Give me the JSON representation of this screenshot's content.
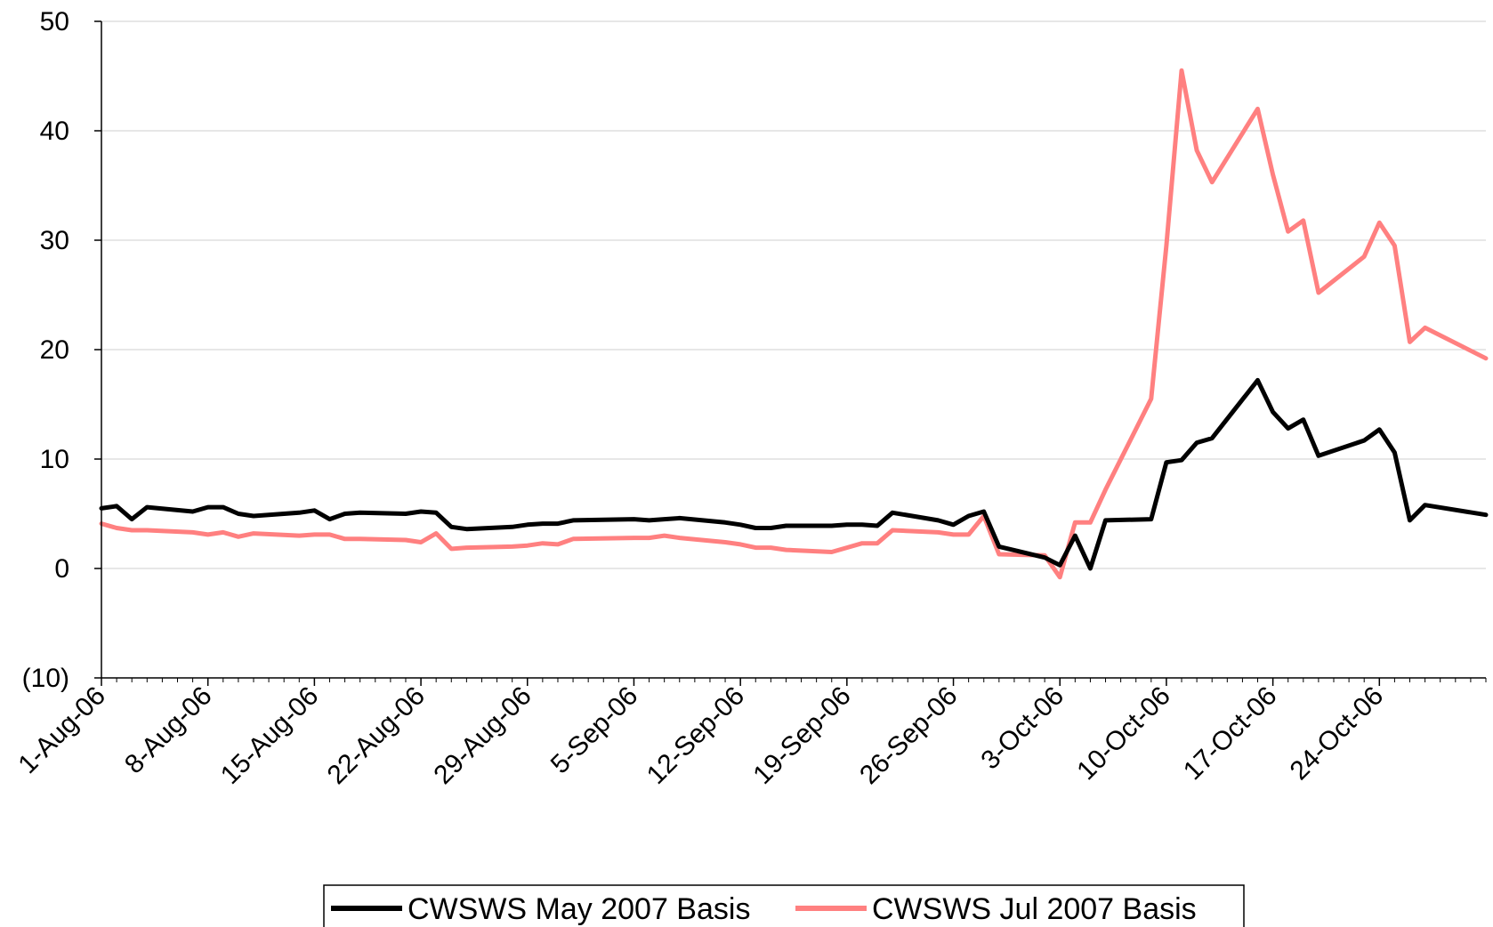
{
  "chart_data": {
    "type": "line",
    "title": "",
    "xlabel": "",
    "ylabel": "",
    "ylim": [
      -10,
      50
    ],
    "y_ticks": [
      {
        "value": 50,
        "label": "50"
      },
      {
        "value": 40,
        "label": "40"
      },
      {
        "value": 30,
        "label": "30"
      },
      {
        "value": 20,
        "label": "20"
      },
      {
        "value": 10,
        "label": "10"
      },
      {
        "value": 0,
        "label": "0"
      },
      {
        "value": -10,
        "label": "(10)"
      }
    ],
    "negative_label_color": "#ff0000",
    "x_start": "2006-08-01",
    "x_end": "2006-10-31",
    "x_ticks": [
      {
        "date": "2006-08-01",
        "label": "1-Aug-06"
      },
      {
        "date": "2006-08-08",
        "label": "8-Aug-06"
      },
      {
        "date": "2006-08-15",
        "label": "15-Aug-06"
      },
      {
        "date": "2006-08-22",
        "label": "22-Aug-06"
      },
      {
        "date": "2006-08-29",
        "label": "29-Aug-06"
      },
      {
        "date": "2006-09-05",
        "label": "5-Sep-06"
      },
      {
        "date": "2006-09-12",
        "label": "12-Sep-06"
      },
      {
        "date": "2006-09-19",
        "label": "19-Sep-06"
      },
      {
        "date": "2006-09-26",
        "label": "26-Sep-06"
      },
      {
        "date": "2006-10-03",
        "label": "3-Oct-06"
      },
      {
        "date": "2006-10-10",
        "label": "10-Oct-06"
      },
      {
        "date": "2006-10-17",
        "label": "17-Oct-06"
      },
      {
        "date": "2006-10-24",
        "label": "24-Oct-06"
      }
    ],
    "grid": true,
    "legend_position": "bottom",
    "series": [
      {
        "name": "CWSWS May 2007 Basis",
        "color": "#000000",
        "points": [
          [
            "2006-08-01",
            5.5
          ],
          [
            "2006-08-02",
            5.7
          ],
          [
            "2006-08-03",
            4.5
          ],
          [
            "2006-08-04",
            5.6
          ],
          [
            "2006-08-07",
            5.2
          ],
          [
            "2006-08-08",
            5.6
          ],
          [
            "2006-08-09",
            5.6
          ],
          [
            "2006-08-10",
            5.0
          ],
          [
            "2006-08-11",
            4.8
          ],
          [
            "2006-08-14",
            5.1
          ],
          [
            "2006-08-15",
            5.3
          ],
          [
            "2006-08-16",
            4.5
          ],
          [
            "2006-08-17",
            5.0
          ],
          [
            "2006-08-18",
            5.1
          ],
          [
            "2006-08-21",
            5.0
          ],
          [
            "2006-08-22",
            5.2
          ],
          [
            "2006-08-23",
            5.1
          ],
          [
            "2006-08-24",
            3.8
          ],
          [
            "2006-08-25",
            3.6
          ],
          [
            "2006-08-28",
            3.8
          ],
          [
            "2006-08-29",
            4.0
          ],
          [
            "2006-08-30",
            4.1
          ],
          [
            "2006-08-31",
            4.1
          ],
          [
            "2006-09-01",
            4.4
          ],
          [
            "2006-09-05",
            4.5
          ],
          [
            "2006-09-06",
            4.4
          ],
          [
            "2006-09-07",
            4.5
          ],
          [
            "2006-09-08",
            4.6
          ],
          [
            "2006-09-11",
            4.2
          ],
          [
            "2006-09-12",
            4.0
          ],
          [
            "2006-09-13",
            3.7
          ],
          [
            "2006-09-14",
            3.7
          ],
          [
            "2006-09-15",
            3.9
          ],
          [
            "2006-09-18",
            3.9
          ],
          [
            "2006-09-19",
            4.0
          ],
          [
            "2006-09-20",
            4.0
          ],
          [
            "2006-09-21",
            3.9
          ],
          [
            "2006-09-22",
            5.1
          ],
          [
            "2006-09-25",
            4.4
          ],
          [
            "2006-09-26",
            4.0
          ],
          [
            "2006-09-27",
            4.8
          ],
          [
            "2006-09-28",
            5.2
          ],
          [
            "2006-09-29",
            2.0
          ],
          [
            "2006-10-02",
            1.0
          ],
          [
            "2006-10-03",
            0.3
          ],
          [
            "2006-10-04",
            3.0
          ],
          [
            "2006-10-05",
            0.0
          ],
          [
            "2006-10-06",
            4.4
          ],
          [
            "2006-10-09",
            4.5
          ],
          [
            "2006-10-10",
            9.7
          ],
          [
            "2006-10-11",
            9.9
          ],
          [
            "2006-10-12",
            11.5
          ],
          [
            "2006-10-13",
            11.9
          ],
          [
            "2006-10-16",
            17.2
          ],
          [
            "2006-10-17",
            14.3
          ],
          [
            "2006-10-18",
            12.8
          ],
          [
            "2006-10-19",
            13.6
          ],
          [
            "2006-10-20",
            10.3
          ],
          [
            "2006-10-23",
            11.7
          ],
          [
            "2006-10-24",
            12.7
          ],
          [
            "2006-10-25",
            10.6
          ],
          [
            "2006-10-26",
            4.4
          ],
          [
            "2006-10-27",
            5.8
          ],
          [
            "2006-10-31",
            4.9
          ]
        ]
      },
      {
        "name": "CWSWS Jul 2007 Basis",
        "color": "#ff8080",
        "points": [
          [
            "2006-08-01",
            4.1
          ],
          [
            "2006-08-02",
            3.7
          ],
          [
            "2006-08-03",
            3.5
          ],
          [
            "2006-08-04",
            3.5
          ],
          [
            "2006-08-07",
            3.3
          ],
          [
            "2006-08-08",
            3.1
          ],
          [
            "2006-08-09",
            3.3
          ],
          [
            "2006-08-10",
            2.9
          ],
          [
            "2006-08-11",
            3.2
          ],
          [
            "2006-08-14",
            3.0
          ],
          [
            "2006-08-15",
            3.1
          ],
          [
            "2006-08-16",
            3.1
          ],
          [
            "2006-08-17",
            2.7
          ],
          [
            "2006-08-18",
            2.7
          ],
          [
            "2006-08-21",
            2.6
          ],
          [
            "2006-08-22",
            2.4
          ],
          [
            "2006-08-23",
            3.2
          ],
          [
            "2006-08-24",
            1.8
          ],
          [
            "2006-08-25",
            1.9
          ],
          [
            "2006-08-28",
            2.0
          ],
          [
            "2006-08-29",
            2.1
          ],
          [
            "2006-08-30",
            2.3
          ],
          [
            "2006-08-31",
            2.2
          ],
          [
            "2006-09-01",
            2.7
          ],
          [
            "2006-09-05",
            2.8
          ],
          [
            "2006-09-06",
            2.8
          ],
          [
            "2006-09-07",
            3.0
          ],
          [
            "2006-09-08",
            2.8
          ],
          [
            "2006-09-11",
            2.4
          ],
          [
            "2006-09-12",
            2.2
          ],
          [
            "2006-09-13",
            1.9
          ],
          [
            "2006-09-14",
            1.9
          ],
          [
            "2006-09-15",
            1.7
          ],
          [
            "2006-09-18",
            1.5
          ],
          [
            "2006-09-19",
            1.9
          ],
          [
            "2006-09-20",
            2.3
          ],
          [
            "2006-09-21",
            2.3
          ],
          [
            "2006-09-22",
            3.5
          ],
          [
            "2006-09-25",
            3.3
          ],
          [
            "2006-09-26",
            3.1
          ],
          [
            "2006-09-27",
            3.1
          ],
          [
            "2006-09-28",
            4.8
          ],
          [
            "2006-09-29",
            1.3
          ],
          [
            "2006-10-02",
            1.2
          ],
          [
            "2006-10-03",
            -0.8
          ],
          [
            "2006-10-04",
            4.2
          ],
          [
            "2006-10-05",
            4.2
          ],
          [
            "2006-10-06",
            7.2
          ],
          [
            "2006-10-09",
            15.5
          ],
          [
            "2006-10-10",
            29.5
          ],
          [
            "2006-10-11",
            45.5
          ],
          [
            "2006-10-12",
            38.2
          ],
          [
            "2006-10-13",
            35.3
          ],
          [
            "2006-10-16",
            42.0
          ],
          [
            "2006-10-17",
            36.0
          ],
          [
            "2006-10-18",
            30.8
          ],
          [
            "2006-10-19",
            31.8
          ],
          [
            "2006-10-20",
            25.2
          ],
          [
            "2006-10-23",
            28.5
          ],
          [
            "2006-10-24",
            31.6
          ],
          [
            "2006-10-25",
            29.5
          ],
          [
            "2006-10-26",
            20.7
          ],
          [
            "2006-10-27",
            22.0
          ],
          [
            "2006-10-31",
            19.2
          ]
        ]
      }
    ]
  }
}
